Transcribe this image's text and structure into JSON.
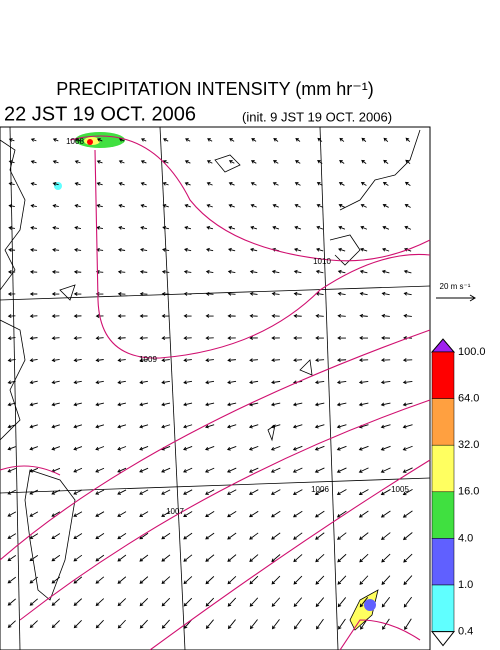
{
  "header": {
    "title": "PRECIPITATION INTENSITY (mm hr⁻¹)",
    "valid_time": "22 JST 19 OCT. 2006",
    "init_time": "(init. 9 JST 19 OCT. 2006)"
  },
  "wind_reference": {
    "label": "20 m s⁻¹"
  },
  "contour_labels": [
    "1008",
    "1010",
    "1009",
    "1006",
    "1007",
    "1005"
  ],
  "colorbar": {
    "labels": [
      "100.0",
      "64.0",
      "32.0",
      "16.0",
      "4.0",
      "1.0",
      "0.4"
    ],
    "colors": [
      "#a020f0",
      "#ff0000",
      "#ffa040",
      "#ffff60",
      "#40e040",
      "#6060ff",
      "#60ffff",
      "#ffffff"
    ]
  }
}
